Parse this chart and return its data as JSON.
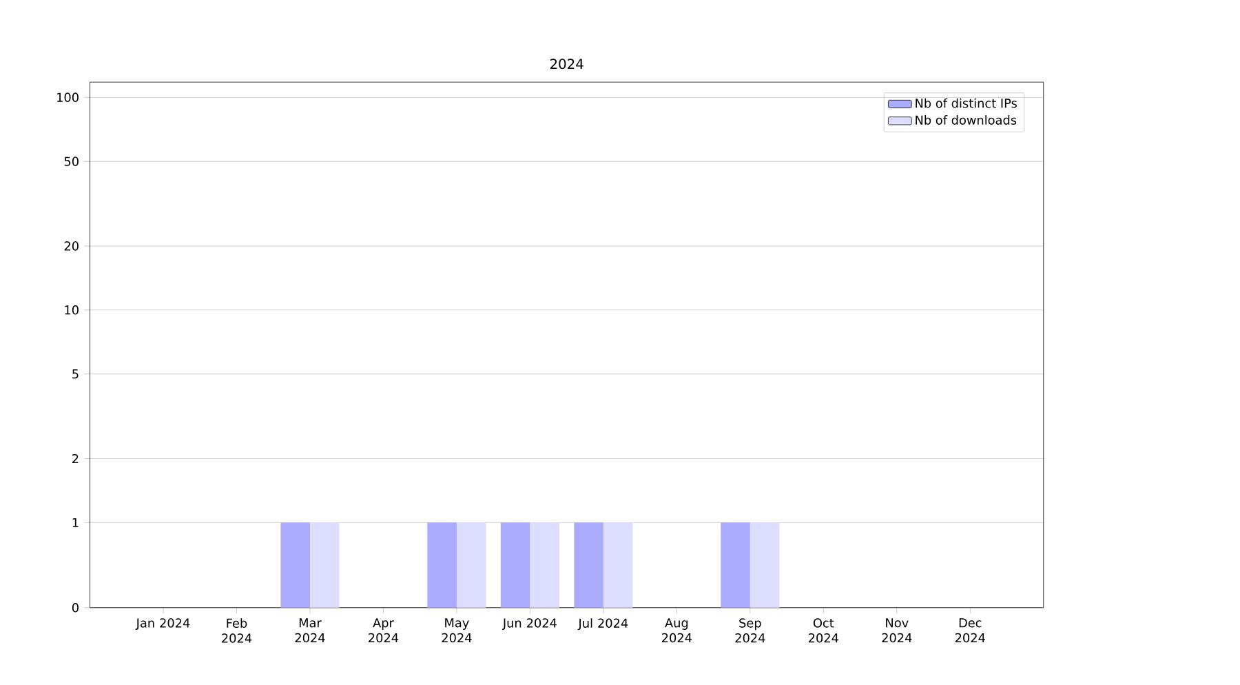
{
  "chart_data": {
    "type": "bar",
    "title": "2024",
    "categories": [
      "Jan 2024",
      "Feb 2024",
      "Mar 2024",
      "Apr 2024",
      "May 2024",
      "Jun 2024",
      "Jul 2024",
      "Aug 2024",
      "Sep 2024",
      "Oct 2024",
      "Nov 2024",
      "Dec 2024"
    ],
    "series": [
      {
        "name": "Nb of distinct IPs",
        "color": "#aaaaff",
        "values": [
          0,
          0,
          1,
          0,
          1,
          1,
          1,
          0,
          1,
          0,
          0,
          0
        ]
      },
      {
        "name": "Nb of downloads",
        "color": "#ddddff",
        "values": [
          0,
          0,
          1,
          0,
          1,
          1,
          1,
          0,
          1,
          0,
          0,
          0
        ]
      }
    ],
    "log": "y",
    "ylim": [
      0,
      118
    ],
    "yticks": [
      0,
      1,
      2,
      5,
      10,
      20,
      50,
      100
    ],
    "grid": "y",
    "legend": "top right"
  }
}
